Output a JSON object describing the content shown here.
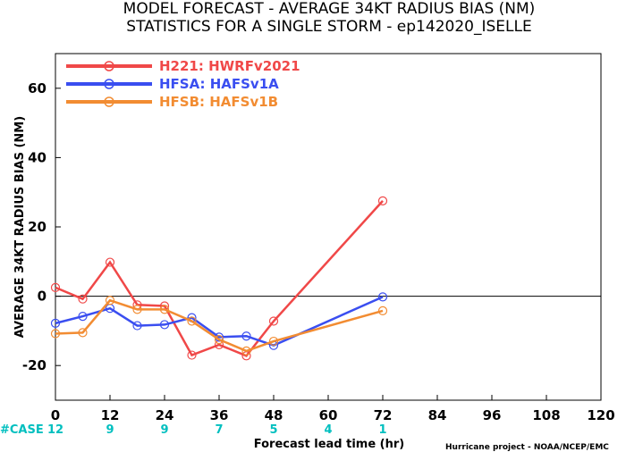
{
  "title_line1": "MODEL FORECAST - AVERAGE 34KT RADIUS BIAS (NM)",
  "title_line2": "STATISTICS FOR A SINGLE STORM - ep142020_ISELLE",
  "credit": "Hurricane project - NOAA/NCEP/EMC",
  "case_prefix": "#CASE",
  "case_color": "#00bfbf",
  "chart_data": {
    "type": "line",
    "xlabel": "Forecast lead time (hr)",
    "ylabel": "AVERAGE 34KT RADIUS BIAS (NM)",
    "xlim": [
      0,
      120
    ],
    "ylim": [
      -30,
      70
    ],
    "x_ticks": [
      0,
      12,
      24,
      36,
      48,
      60,
      72,
      84,
      96,
      108,
      120
    ],
    "y_ticks": [
      -20,
      0,
      20,
      40,
      60
    ],
    "zero_line": true,
    "legend_position": "top-left",
    "cases": [
      {
        "x": 0,
        "count": "12"
      },
      {
        "x": 12,
        "count": "9"
      },
      {
        "x": 24,
        "count": "9"
      },
      {
        "x": 36,
        "count": "7"
      },
      {
        "x": 48,
        "count": "5"
      },
      {
        "x": 60,
        "count": "4"
      },
      {
        "x": 72,
        "count": "1"
      }
    ],
    "series": [
      {
        "name": "H221: HWRFv2021",
        "color": "#f04848",
        "x": [
          0,
          6,
          12,
          18,
          24,
          30,
          36,
          42,
          48,
          72
        ],
        "y": [
          2.5,
          -0.8,
          9.8,
          -2.5,
          -2.8,
          -17,
          -14,
          -17.2,
          -7.2,
          27.5
        ]
      },
      {
        "name": "HFSA: HAFSv1A",
        "color": "#3a4ef0",
        "x": [
          0,
          6,
          12,
          18,
          24,
          30,
          36,
          42,
          48,
          72
        ],
        "y": [
          -7.8,
          -5.8,
          -3.5,
          -8.5,
          -8.2,
          -6.2,
          -11.8,
          -11.5,
          -14.2,
          -0.2
        ]
      },
      {
        "name": "HFSB: HAFSv1B",
        "color": "#f28c32",
        "x": [
          0,
          6,
          12,
          18,
          24,
          30,
          36,
          42,
          48,
          72
        ],
        "y": [
          -10.8,
          -10.5,
          -1.2,
          -3.8,
          -3.8,
          -7.2,
          -12.5,
          -15.8,
          -13,
          -4.2
        ]
      }
    ]
  }
}
